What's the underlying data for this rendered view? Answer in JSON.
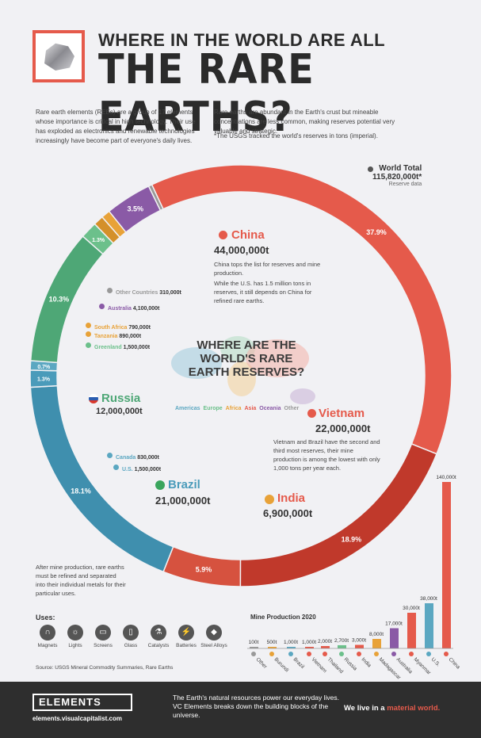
{
  "header": {
    "title_small": "WHERE IN THE WORLD ARE ALL",
    "title_big": "THE RARE EARTHS?"
  },
  "intro": {
    "left": "Rare earth elements (REEs) are a group of 17 elements whose importance is critical in high technology. Their use has exploded as electronics and renewable technologies increasingly have become part of everyone's daily lives.",
    "right": "Rare earths are abundant in the Earth's crust but mineable concentrations are less common, making reserves potential very valuable and strategic.",
    "note": "*The USGS tracked the world's reserves in tons (imperial)."
  },
  "world_total": {
    "label": "World Total",
    "value": "115,820,000t*",
    "sub": "Reserve data"
  },
  "center": {
    "title": "WHERE ARE THE WORLD'S RARE EARTH RESERVES?"
  },
  "continents": [
    {
      "name": "Americas",
      "color": "#5ba7c1"
    },
    {
      "name": "Europe",
      "color": "#6cc08b"
    },
    {
      "name": "Africa",
      "color": "#e8a238"
    },
    {
      "name": "Asia",
      "color": "#e55a4b"
    },
    {
      "name": "Oceania",
      "color": "#8a5aa6"
    },
    {
      "name": "Other",
      "color": "#999999"
    }
  ],
  "callouts": {
    "china": {
      "name": "China",
      "value": "44,000,000t",
      "text1": "China tops the list for reserves and mine production.",
      "text2": "While the U.S. has 1.5 million tons in reserves, it still depends on China for refined rare earths."
    },
    "vietnam": {
      "name": "Vietnam",
      "value": "22,000,000t",
      "text": "Vietnam and Brazil have the second and third most reserves, their mine production is among the lowest with only 1,000 tons per year each."
    },
    "brazil": {
      "name": "Brazil",
      "value": "21,000,000t"
    },
    "india": {
      "name": "India",
      "value": "6,900,000t"
    },
    "russia": {
      "name": "Russia",
      "value": "12,000,000t"
    },
    "small": [
      {
        "name": "Other Countries",
        "value": "310,000t",
        "color": "#999999"
      },
      {
        "name": "Australia",
        "value": "4,100,000t",
        "color": "#8a5aa6"
      },
      {
        "name": "South Africa",
        "value": "790,000t",
        "color": "#e8a238"
      },
      {
        "name": "Tanzania",
        "value": "890,000t",
        "color": "#e8a238"
      },
      {
        "name": "Greenland",
        "value": "1,500,000t",
        "color": "#6cc08b"
      },
      {
        "name": "Canada",
        "value": "830,000t",
        "color": "#5ba7c1"
      },
      {
        "name": "U.S.",
        "value": "1,500,000t",
        "color": "#5ba7c1"
      }
    ]
  },
  "ring_labels": {
    "china": "37.9%",
    "vietnam": "18.9%",
    "brazil": "18.1%",
    "india": "5.9%",
    "russia": "10.3%",
    "australia": "3.5%",
    "greenland": "1.3%",
    "us": "1.3%",
    "canada": "0.7%"
  },
  "chart_data": [
    {
      "type": "pie",
      "title": "WHERE ARE THE WORLD'S RARE EARTH RESERVES?",
      "categories": [
        "China",
        "Vietnam",
        "India",
        "Brazil",
        "U.S.",
        "Canada",
        "Russia",
        "Greenland",
        "Tanzania",
        "South Africa",
        "Australia",
        "Other Countries"
      ],
      "values": [
        44000000,
        22000000,
        6900000,
        21000000,
        1500000,
        830000,
        12000000,
        1500000,
        890000,
        790000,
        4100000,
        310000
      ],
      "colors": [
        "#e55a4b",
        "#c0392b",
        "#d6523f",
        "#3f8fae",
        "#4a9bba",
        "#5ba7c1",
        "#4ea776",
        "#6cc08b",
        "#d4902a",
        "#e8a238",
        "#8a5aa6",
        "#999999"
      ],
      "total": "115,820,000t*"
    },
    {
      "type": "bar",
      "title": "Mine Production 2020",
      "categories": [
        "Other",
        "Burundi",
        "Brazil",
        "Vietnam",
        "Thailand",
        "Russia",
        "India",
        "Madagascar",
        "Australia",
        "Myanmar",
        "U.S.",
        "China"
      ],
      "values": [
        100,
        500,
        1000,
        1000,
        2000,
        2700,
        3000,
        8000,
        17000,
        30000,
        38000,
        140000
      ],
      "value_labels": [
        "100t",
        "500t",
        "1,000t",
        "1,000t",
        "2,000t",
        "2,700t",
        "3,000t",
        "8,000t",
        "17,000t",
        "30,000t",
        "38,000t",
        "140,000t"
      ],
      "colors": [
        "#999999",
        "#e8a238",
        "#5ba7c1",
        "#e55a4b",
        "#e55a4b",
        "#6cc08b",
        "#e55a4b",
        "#e8a238",
        "#8a5aa6",
        "#e55a4b",
        "#5ba7c1",
        "#e55a4b"
      ]
    }
  ],
  "after_text": "After mine production, rare earths must be refined and separated into their individual metals for their particular uses.",
  "uses": {
    "title": "Uses:",
    "items": [
      {
        "label": "Magnets",
        "icon": "magnet-icon",
        "glyph": "∩"
      },
      {
        "label": "Lights",
        "icon": "bulb-icon",
        "glyph": "☼"
      },
      {
        "label": "Screens",
        "icon": "screen-icon",
        "glyph": "▭"
      },
      {
        "label": "Glass",
        "icon": "glass-icon",
        "glyph": "▯"
      },
      {
        "label": "Catalysts",
        "icon": "catalyst-icon",
        "glyph": "⚗"
      },
      {
        "label": "Batteries",
        "icon": "battery-icon",
        "glyph": "⚡"
      },
      {
        "label": "Steel Alloys",
        "icon": "steel-icon",
        "glyph": "◆"
      }
    ]
  },
  "source": "Source: USGS Mineral Commodity Summaries, Rare Earths",
  "footer": {
    "brand": "ELEMENTS",
    "url": "elements.visualcapitalist.com",
    "text": "The Earth's natural resources power our everyday lives. VC Elements breaks down the building blocks of the universe.",
    "tagline_pre": "We live in a ",
    "tagline_accent": "material world."
  }
}
